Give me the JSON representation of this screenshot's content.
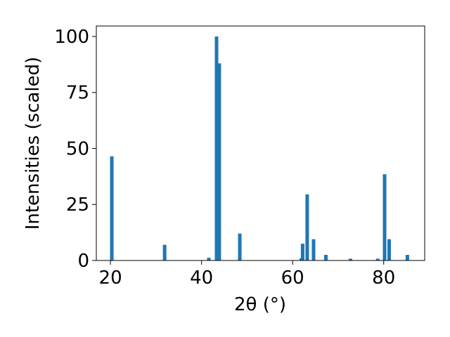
{
  "chart_data": {
    "type": "bar",
    "x_label": "2θ (°)",
    "y_label": "Intensities (scaled)",
    "x": [
      20.3,
      31.9,
      41.6,
      43.3,
      43.9,
      48.4,
      61.9,
      62.2,
      63.2,
      64.6,
      67.3,
      72.7,
      78.7,
      80.2,
      81.2,
      85.2
    ],
    "values": [
      46.5,
      7,
      1.2,
      100,
      88,
      12,
      1,
      7.5,
      29.5,
      9.5,
      2.5,
      0.8,
      0.8,
      38.5,
      9.5,
      2.5
    ],
    "color": "#1f77b4",
    "xlim": [
      16.9,
      89.0
    ],
    "xticks": [
      20,
      40,
      60,
      80
    ],
    "ylim": [
      0,
      104.7
    ],
    "yticks": [
      0,
      25,
      50,
      75,
      100
    ]
  }
}
